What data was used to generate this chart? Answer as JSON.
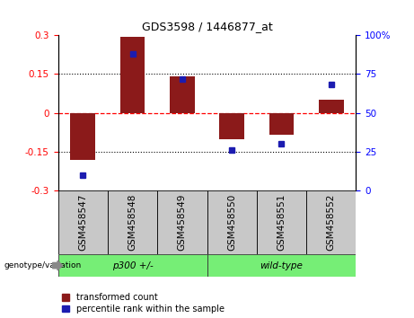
{
  "title": "GDS3598 / 1446877_at",
  "samples": [
    "GSM458547",
    "GSM458548",
    "GSM458549",
    "GSM458550",
    "GSM458551",
    "GSM458552"
  ],
  "red_values": [
    -0.18,
    0.293,
    0.14,
    -0.1,
    -0.085,
    0.052
  ],
  "blue_values": [
    10,
    88,
    72,
    26,
    30,
    68
  ],
  "ylim": [
    -0.3,
    0.3
  ],
  "yticks_left": [
    -0.3,
    -0.15,
    0,
    0.15,
    0.3
  ],
  "yticks_right": [
    0,
    25,
    50,
    75,
    100
  ],
  "y2lim": [
    0,
    100
  ],
  "red_color": "#8B1A1A",
  "blue_color": "#1C1CB0",
  "bar_width": 0.5,
  "legend_red": "transformed count",
  "legend_blue": "percentile rank within the sample",
  "genotype_label": "genotype/variation",
  "group_defs": [
    {
      "label": "p300 +/-",
      "start": 0,
      "end": 3
    },
    {
      "label": "wild-type",
      "start": 3,
      "end": 6
    }
  ],
  "xtick_bg": "#C8C8C8",
  "group_bg": "#76EE76",
  "title_fontsize": 9,
  "axis_fontsize": 7.5,
  "label_fontsize": 7.5,
  "legend_fontsize": 7
}
